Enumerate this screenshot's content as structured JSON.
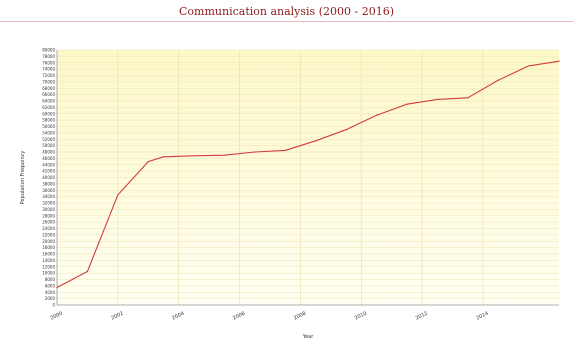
{
  "chart_data": {
    "type": "line",
    "title": "Communication analysis (2000 - 2016)",
    "xlabel": "Year",
    "ylabel": "Population Frequency",
    "xlim": [
      2000,
      2016.5
    ],
    "ylim": [
      0,
      80000
    ],
    "grid": true,
    "x": [
      2000,
      2001,
      2002,
      2003,
      2003.5,
      2004.5,
      2005.5,
      2006.5,
      2007.5,
      2008.5,
      2009.5,
      2010.5,
      2011.5,
      2012.5,
      2013.5,
      2014.5,
      2015.5,
      2016.5
    ],
    "series": [
      {
        "name": "",
        "color": "#d23c3c",
        "values": [
          5500,
          10500,
          34500,
          45000,
          46500,
          46800,
          47000,
          48000,
          48500,
          51500,
          55000,
          59500,
          63000,
          64500,
          65000,
          70500,
          75000,
          76500
        ]
      }
    ],
    "xticks": [
      "2000",
      "2002",
      "2004",
      "2006",
      "2008",
      "2010",
      "2012",
      "2014"
    ],
    "xtick_values": [
      2000,
      2002,
      2004,
      2006,
      2008,
      2010,
      2012,
      2014
    ],
    "yticks": [
      "0",
      "2000",
      "4000",
      "6000",
      "8000",
      "10000",
      "12000",
      "14000",
      "16000",
      "18000",
      "20000",
      "22000",
      "24000",
      "26000",
      "28000",
      "30000",
      "32000",
      "34000",
      "36000",
      "38000",
      "40000",
      "42000",
      "44000",
      "46000",
      "48000",
      "50000",
      "52000",
      "54000",
      "56000",
      "58000",
      "60000",
      "62000",
      "64000",
      "66000",
      "68000",
      "70000",
      "72000",
      "74000",
      "76000",
      "78000",
      "80000"
    ]
  },
  "colors": {
    "plot_bg_top": "#fdf8c8",
    "plot_bg_bottom": "#fffef2",
    "title": "#8b1a1a"
  }
}
